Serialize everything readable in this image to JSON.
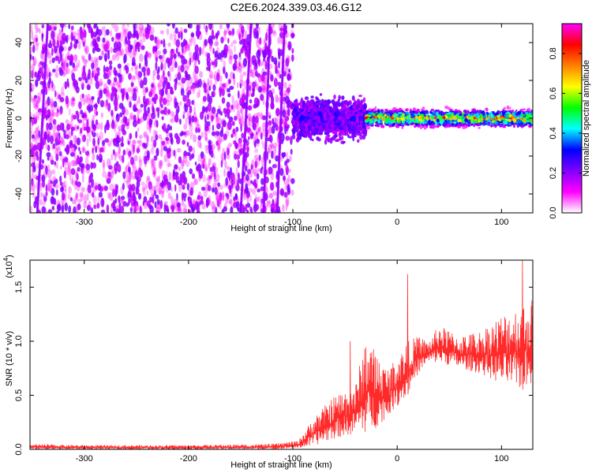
{
  "title": "C2E6.2024.339.03.46.G12",
  "chart_data": [
    {
      "type": "heatmap",
      "xlabel": "Height of straight line (km)",
      "ylabel": "Frequency (Hz)",
      "xlim": [
        -352,
        130
      ],
      "ylim": [
        -50,
        50
      ],
      "x_ticks": [
        -300,
        -200,
        -100,
        0,
        100
      ],
      "x_tick_labels": [
        "-300",
        "-200",
        "-100",
        "0",
        "100"
      ],
      "y_ticks": [
        -40,
        -20,
        0,
        20,
        40
      ],
      "y_tick_labels": [
        "-40",
        "-20",
        "0",
        "20",
        "40"
      ],
      "colorbar": {
        "label": "Normalized spectral amplitude",
        "range": [
          0,
          0.95
        ],
        "ticks": [
          0.0,
          0.2,
          0.4,
          0.6,
          0.8
        ],
        "tick_labels": [
          "0.0",
          "0.2",
          "0.4",
          "0.6",
          "0.8"
        ],
        "colormap": [
          "#ffffff",
          "#ff00ff",
          "#8000ff",
          "#0000ff",
          "#00ffff",
          "#00ff00",
          "#ffff00",
          "#ff8000",
          "#ff0000",
          "#ff00ff"
        ]
      },
      "regions": [
        {
          "x_range": [
            -352,
            -100
          ],
          "description": "broadband noise",
          "amplitude": [
            0.05,
            0.2
          ]
        },
        {
          "x_range": [
            -100,
            -30
          ],
          "freq_center": 0,
          "freq_halfwidth": 10,
          "amplitude": [
            0.15,
            0.35
          ]
        },
        {
          "x_range": [
            -30,
            130
          ],
          "freq_center": 0,
          "freq_halfwidth": 4,
          "amplitude": [
            0.3,
            0.9
          ]
        }
      ]
    },
    {
      "type": "line",
      "xlabel": "Height of straight line (km)",
      "ylabel": "SNR (10 * v/v)",
      "y_scale_label": "(x10",
      "y_scale_exponent": "4",
      "xlim": [
        -352,
        130
      ],
      "ylim": [
        0,
        1.75
      ],
      "x_ticks": [
        -300,
        -200,
        -100,
        0,
        100
      ],
      "x_tick_labels": [
        "-300",
        "-200",
        "-100",
        "0",
        "100"
      ],
      "y_ticks": [
        0.0,
        0.5,
        1.0,
        1.5
      ],
      "y_tick_labels": [
        "0.0",
        "0.5",
        "1.0",
        "1.5"
      ],
      "line_color": "#ff2a2a",
      "envelope_x": [
        -352,
        -300,
        -200,
        -120,
        -95,
        -80,
        -60,
        -40,
        -30,
        -20,
        -10,
        0,
        10,
        20,
        30,
        40,
        60,
        80,
        100,
        120,
        130
      ],
      "envelope_low": [
        0.0,
        0.0,
        0.0,
        0.0,
        0.01,
        0.03,
        0.1,
        0.15,
        0.15,
        0.2,
        0.3,
        0.4,
        0.5,
        0.7,
        0.8,
        0.8,
        0.75,
        0.7,
        0.6,
        0.55,
        0.6
      ],
      "envelope_high": [
        0.05,
        0.04,
        0.04,
        0.05,
        0.08,
        0.3,
        0.5,
        0.6,
        1.05,
        0.9,
        0.75,
        0.85,
        1.0,
        1.05,
        1.0,
        1.15,
        1.05,
        1.1,
        1.25,
        1.35,
        1.4
      ],
      "spikes": [
        {
          "x": 10,
          "y": 1.62
        },
        {
          "x": -45,
          "y": 1.0
        },
        {
          "x": 120,
          "y": 1.75
        }
      ]
    }
  ]
}
